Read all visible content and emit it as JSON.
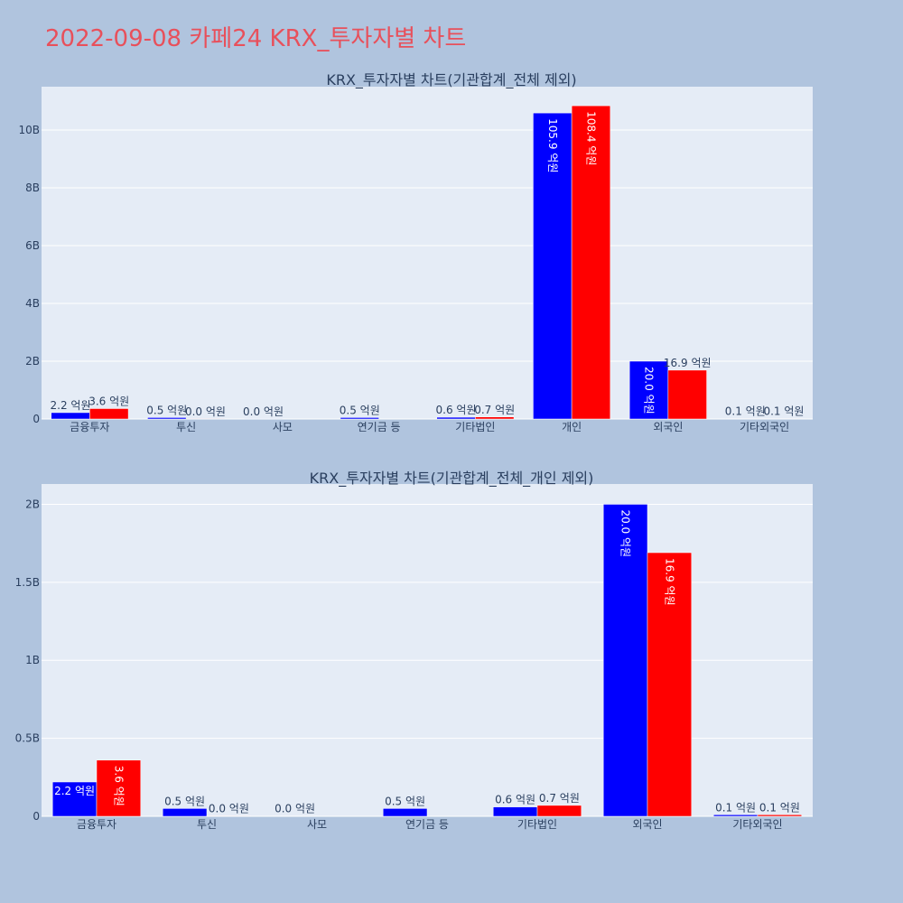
{
  "title": "2022-09-08 카페24 KRX_투자자별 차트",
  "colors": {
    "background": "#b0c4de",
    "plot_bg": "#e5ecf6",
    "series_a": "#0000ff",
    "series_b": "#ff0000",
    "title": "#e8505b"
  },
  "chart_data": [
    {
      "type": "bar",
      "title": "KRX_투자자별 차트(기관합계_전체 제외)",
      "categories": [
        "금융투자",
        "투신",
        "사모",
        "연기금 등",
        "기타법인",
        "개인",
        "외국인",
        "기타외국인"
      ],
      "ylim": [
        0,
        11500000000
      ],
      "yticks": [
        0,
        2000000000,
        4000000000,
        6000000000,
        8000000000,
        10000000000
      ],
      "ytick_labels": [
        "0",
        "2B",
        "4B",
        "6B",
        "8B",
        "10B"
      ],
      "grid": true,
      "series": [
        {
          "values": [
            220000000,
            50000000,
            2000000,
            50000000,
            60000000,
            10590000000,
            2000000000,
            10000000
          ],
          "labels": [
            "2.2 억원",
            "0.5 억원",
            "0.0 억원",
            "0.5 억원",
            "0.6 억원",
            "105.9 억원",
            "20.0 억원",
            "0.1 억원"
          ]
        },
        {
          "values": [
            360000000,
            3000000,
            null,
            null,
            70000000,
            10840000000,
            1690000000,
            10000000
          ],
          "labels": [
            "3.6 억원",
            "0.0 억원",
            null,
            null,
            "0.7 억원",
            "108.4 억원",
            "16.9 억원",
            "0.1 억원"
          ]
        }
      ]
    },
    {
      "type": "bar",
      "title": "KRX_투자자별 차트(기관합계_전체_개인 제외)",
      "categories": [
        "금융투자",
        "투신",
        "사모",
        "연기금 등",
        "기타법인",
        "외국인",
        "기타외국인"
      ],
      "ylim": [
        0,
        2130000000
      ],
      "yticks": [
        0,
        500000000,
        1000000000,
        1500000000,
        2000000000
      ],
      "ytick_labels": [
        "0",
        "0.5B",
        "1B",
        "1.5B",
        "2B"
      ],
      "grid": true,
      "series": [
        {
          "values": [
            220000000,
            50000000,
            2000000,
            50000000,
            60000000,
            2000000000,
            10000000
          ],
          "labels": [
            "2.2 억원",
            "0.5 억원",
            "0.0 억원",
            "0.5 억원",
            "0.6 억원",
            "20.0 억원",
            "0.1 억원"
          ]
        },
        {
          "values": [
            360000000,
            3000000,
            null,
            null,
            70000000,
            1690000000,
            10000000
          ],
          "labels": [
            "3.6 억원",
            "0.0 억원",
            null,
            null,
            "0.7 억원",
            "16.9 억원",
            "0.1 억원"
          ]
        }
      ]
    }
  ]
}
